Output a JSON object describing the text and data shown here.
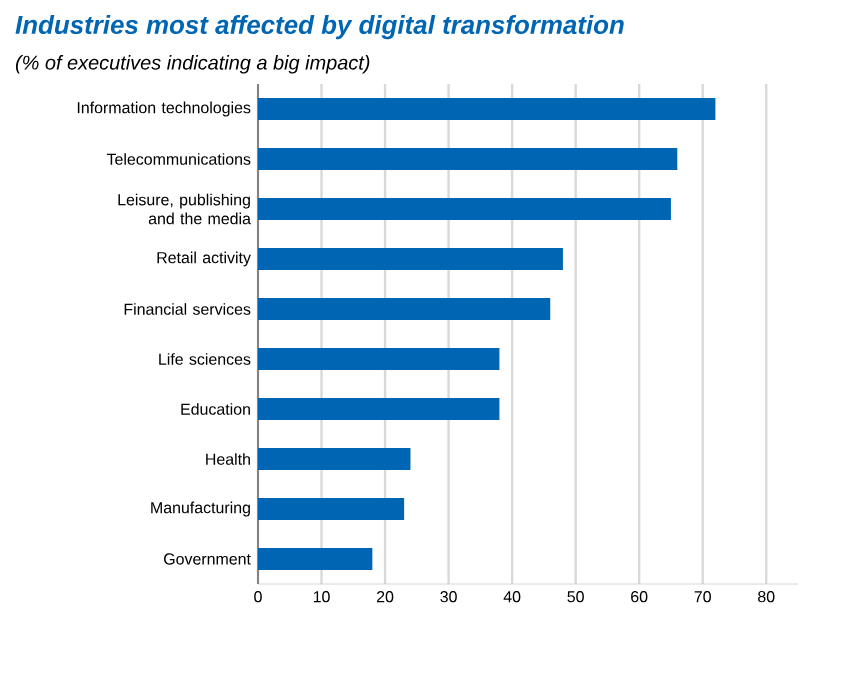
{
  "chart_data": {
    "type": "bar",
    "orientation": "horizontal",
    "title": "Industries most affected by digital transformation",
    "subtitle": "(% of executives indicating a big impact)",
    "categories": [
      "Information technologies",
      "Telecommunications",
      "Leisure, publishing and the media",
      "Retail activity",
      "Financial services",
      "Life sciences",
      "Education",
      "Health",
      "Manufacturing",
      "Government"
    ],
    "values": [
      72,
      66,
      65,
      48,
      46,
      38,
      38,
      24,
      23,
      18
    ],
    "color": "#0066b3",
    "xlim": [
      0,
      85
    ],
    "xticks": [
      0,
      10,
      20,
      30,
      40,
      50,
      60,
      70,
      80
    ],
    "grid": "x"
  }
}
